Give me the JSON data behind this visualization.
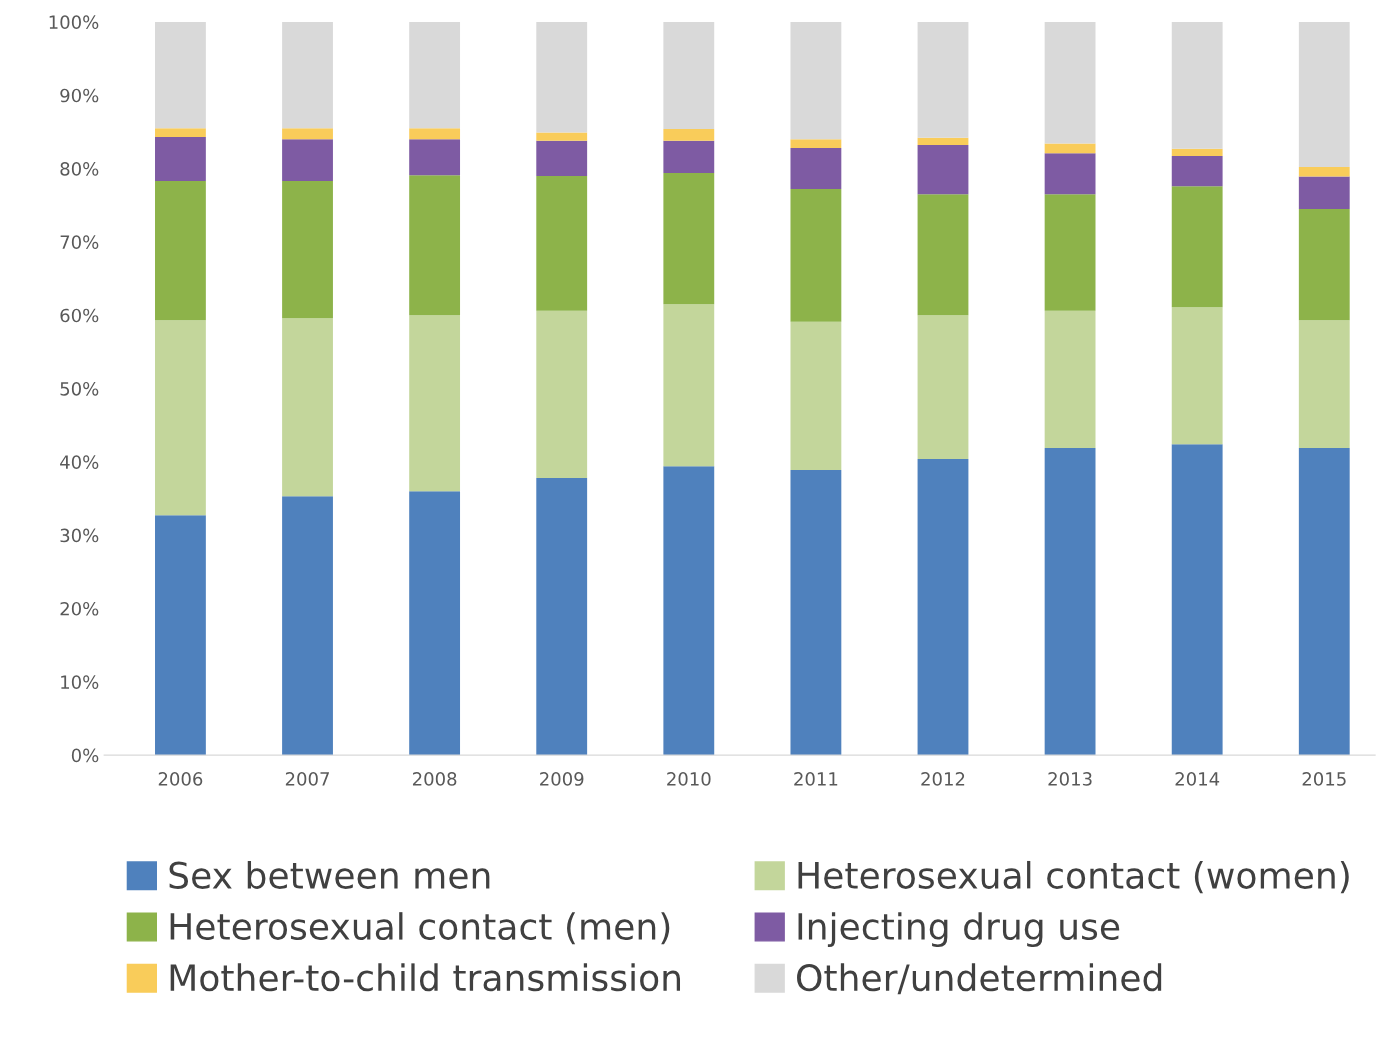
{
  "chart_data": {
    "type": "bar",
    "stacked": true,
    "legend": "bottom",
    "grid": false,
    "categories": [
      "2006",
      "2007",
      "2008",
      "2009",
      "2010",
      "2011",
      "2012",
      "2013",
      "2014",
      "2015"
    ],
    "ylim": [
      0,
      100
    ],
    "yticks": [
      {
        "value": 0,
        "label": "0%"
      },
      {
        "value": 10,
        "label": "10%"
      },
      {
        "value": 20,
        "label": "20%"
      },
      {
        "value": 30,
        "label": "30%"
      },
      {
        "value": 40,
        "label": "40%"
      },
      {
        "value": 50,
        "label": "50%"
      },
      {
        "value": 60,
        "label": "60%"
      },
      {
        "value": 70,
        "label": "70%"
      },
      {
        "value": 80,
        "label": "80%"
      },
      {
        "value": 90,
        "label": "90%"
      },
      {
        "value": 100,
        "label": "100%"
      }
    ],
    "series": [
      {
        "name": "Sex between men",
        "color": "#4f81bd",
        "values": [
          32.7,
          35.3,
          36.0,
          37.8,
          39.4,
          38.9,
          40.4,
          41.9,
          42.4,
          41.9
        ]
      },
      {
        "name": "Heterosexual contact (women)",
        "color": "#c3d69b",
        "values": [
          26.6,
          24.3,
          24.0,
          22.8,
          22.1,
          20.2,
          19.6,
          18.7,
          18.7,
          17.4
        ]
      },
      {
        "name": "Heterosexual contact (men)",
        "color": "#8db34a",
        "values": [
          19.0,
          18.7,
          19.1,
          18.4,
          17.9,
          18.1,
          16.5,
          15.9,
          16.5,
          15.2
        ]
      },
      {
        "name": "Injecting drug use",
        "color": "#7e5ba3",
        "values": [
          6.0,
          5.7,
          4.9,
          4.8,
          4.4,
          5.6,
          6.7,
          5.6,
          4.1,
          4.4
        ]
      },
      {
        "name": "Mother-to-child transmission",
        "color": "#f9cc5a",
        "values": [
          1.2,
          1.5,
          1.5,
          1.1,
          1.6,
          1.2,
          1.0,
          1.3,
          1.0,
          1.3
        ]
      },
      {
        "name": "Other/undetermined",
        "color": "#d9d9d9",
        "values": [
          14.5,
          14.5,
          14.5,
          15.1,
          14.6,
          16.0,
          15.8,
          16.6,
          17.3,
          19.8
        ]
      }
    ]
  }
}
